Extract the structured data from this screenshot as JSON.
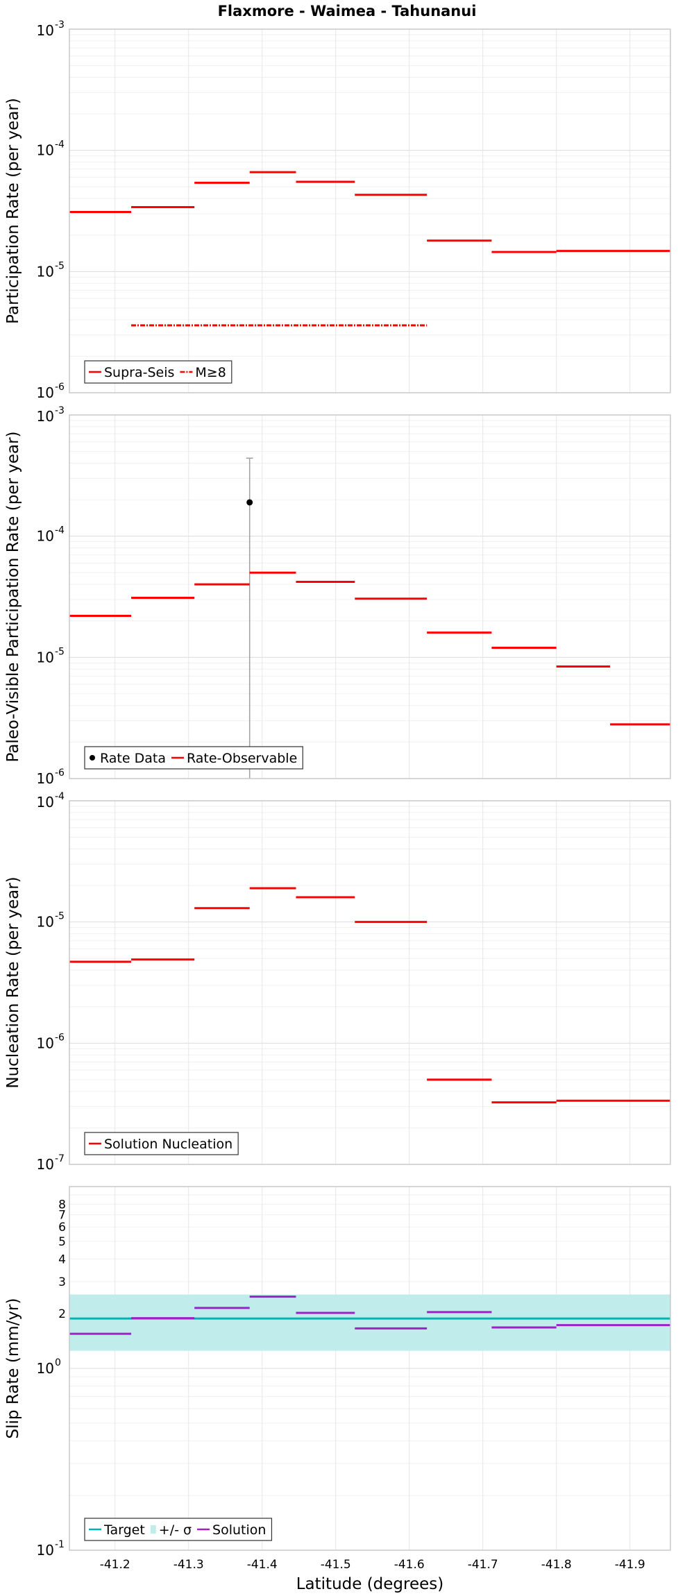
{
  "chart_data": {
    "title": "Flaxmore - Waimea - Tahunanui",
    "xlabel": "Latitude (degrees)",
    "x_range": [
      -41.138,
      -41.955
    ],
    "x_ticks": [
      -41.2,
      -41.3,
      -41.4,
      -41.5,
      -41.6,
      -41.7,
      -41.8,
      -41.9
    ],
    "x_tick_labels": [
      "-41.2",
      "-41.3",
      "-41.4",
      "-41.5",
      "-41.6",
      "-41.7",
      "-41.8",
      "-41.9"
    ],
    "panels": [
      {
        "type": "line",
        "ylabel": "Participation Rate (per year)",
        "yscale": "log",
        "ylim": [
          1e-06,
          0.001
        ],
        "y_major": [
          {
            "base": "10",
            "exp": "-6",
            "value": 1e-06
          },
          {
            "base": "10",
            "exp": "-5",
            "value": 1e-05
          },
          {
            "base": "10",
            "exp": "-4",
            "value": 0.0001
          },
          {
            "base": "10",
            "exp": "-3",
            "value": 0.001
          }
        ],
        "series": [
          {
            "name": "Supra-Seis",
            "color": "#ff0000",
            "style": "solid",
            "segments": [
              [
                -41.138,
                -41.222,
                3.1e-05
              ],
              [
                -41.222,
                -41.308,
                3.4e-05
              ],
              [
                -41.308,
                -41.383,
                5.4e-05
              ],
              [
                -41.383,
                -41.446,
                6.6e-05
              ],
              [
                -41.446,
                -41.526,
                5.5e-05
              ],
              [
                -41.526,
                -41.624,
                4.3e-05
              ],
              [
                -41.624,
                -41.712,
                1.8e-05
              ],
              [
                -41.712,
                -41.8,
                1.45e-05
              ],
              [
                -41.8,
                -41.955,
                1.48e-05
              ]
            ]
          },
          {
            "name": "M≥8",
            "color": "#ff0000",
            "style": "dashdot",
            "segments": [
              [
                -41.222,
                -41.624,
                3.6e-06
              ]
            ]
          }
        ],
        "legend": [
          "Supra-Seis",
          "M≥8"
        ],
        "legend_position": "bottom-left"
      },
      {
        "type": "line",
        "ylabel": "Paleo-Visible Participation Rate (per year)",
        "yscale": "log",
        "ylim": [
          1e-06,
          0.001
        ],
        "y_major": [
          {
            "base": "10",
            "exp": "-6",
            "value": 1e-06
          },
          {
            "base": "10",
            "exp": "-5",
            "value": 1e-05
          },
          {
            "base": "10",
            "exp": "-4",
            "value": 0.0001
          },
          {
            "base": "10",
            "exp": "-3",
            "value": 0.001
          }
        ],
        "series": [
          {
            "name": "Rate-Observable",
            "color": "#ff0000",
            "style": "solid",
            "segments": [
              [
                -41.138,
                -41.222,
                2.2e-05
              ],
              [
                -41.222,
                -41.308,
                3.1e-05
              ],
              [
                -41.308,
                -41.383,
                4e-05
              ],
              [
                -41.383,
                -41.446,
                5e-05
              ],
              [
                -41.446,
                -41.526,
                4.2e-05
              ],
              [
                -41.526,
                -41.624,
                3.05e-05
              ],
              [
                -41.624,
                -41.712,
                1.6e-05
              ],
              [
                -41.712,
                -41.8,
                1.2e-05
              ],
              [
                -41.8,
                -41.873,
                8.4e-06
              ],
              [
                -41.873,
                -41.955,
                2.8e-06
              ]
            ]
          }
        ],
        "points": [
          {
            "name": "Rate Data",
            "x": -41.383,
            "y": 0.00019,
            "err_low": 1e-06,
            "err_high": 0.00044,
            "color": "#000000"
          }
        ],
        "legend": [
          "Rate Data",
          "Rate-Observable"
        ],
        "legend_position": "bottom-left"
      },
      {
        "type": "line",
        "ylabel": "Nucleation Rate (per year)",
        "yscale": "log",
        "ylim": [
          1e-07,
          0.0001
        ],
        "y_major": [
          {
            "base": "10",
            "exp": "-7",
            "value": 1e-07
          },
          {
            "base": "10",
            "exp": "-6",
            "value": 1e-06
          },
          {
            "base": "10",
            "exp": "-5",
            "value": 1e-05
          },
          {
            "base": "10",
            "exp": "-4",
            "value": 0.0001
          }
        ],
        "series": [
          {
            "name": "Solution Nucleation",
            "color": "#ff0000",
            "style": "solid",
            "segments": [
              [
                -41.138,
                -41.222,
                4.7e-06
              ],
              [
                -41.222,
                -41.308,
                4.9e-06
              ],
              [
                -41.308,
                -41.383,
                1.3e-05
              ],
              [
                -41.383,
                -41.446,
                1.9e-05
              ],
              [
                -41.446,
                -41.526,
                1.6e-05
              ],
              [
                -41.526,
                -41.624,
                1e-05
              ],
              [
                -41.624,
                -41.712,
                5e-07
              ],
              [
                -41.712,
                -41.8,
                3.25e-07
              ],
              [
                -41.8,
                -41.955,
                3.35e-07
              ]
            ]
          }
        ],
        "legend": [
          "Solution Nucleation"
        ],
        "legend_position": "bottom-left"
      },
      {
        "type": "line",
        "ylabel": "Slip Rate (mm/yr)",
        "yscale": "log",
        "ylim": [
          0.1,
          10
        ],
        "y_major": [
          {
            "base": "10",
            "exp": "-1",
            "value": 0.1
          },
          {
            "base": "10",
            "exp": "0",
            "value": 1
          }
        ],
        "y_minor_labels": [
          {
            "label": "2",
            "value": 2
          },
          {
            "label": "3",
            "value": 3
          },
          {
            "label": "4",
            "value": 4
          },
          {
            "label": "5",
            "value": 5
          },
          {
            "label": "6",
            "value": 6
          },
          {
            "label": "7",
            "value": 7
          },
          {
            "label": "8",
            "value": 8
          }
        ],
        "band": {
          "name": "+/- σ",
          "low": 1.25,
          "high": 2.55,
          "color": "#c0ecec"
        },
        "series": [
          {
            "name": "Target",
            "color": "#00b4b4",
            "style": "solid",
            "segments": [
              [
                -41.138,
                -41.955,
                1.88
              ]
            ]
          },
          {
            "name": "Solution",
            "color": "#a020c8",
            "style": "solid",
            "segments": [
              [
                -41.138,
                -41.222,
                1.55
              ],
              [
                -41.222,
                -41.308,
                1.89
              ],
              [
                -41.308,
                -41.383,
                2.15
              ],
              [
                -41.383,
                -41.446,
                2.48
              ],
              [
                -41.446,
                -41.526,
                2.02
              ],
              [
                -41.526,
                -41.624,
                1.66
              ],
              [
                -41.624,
                -41.712,
                2.04
              ],
              [
                -41.712,
                -41.8,
                1.68
              ],
              [
                -41.8,
                -41.955,
                1.73
              ]
            ]
          }
        ],
        "legend": [
          "Target",
          "+/- σ",
          "Solution"
        ],
        "legend_position": "bottom-left"
      }
    ]
  }
}
